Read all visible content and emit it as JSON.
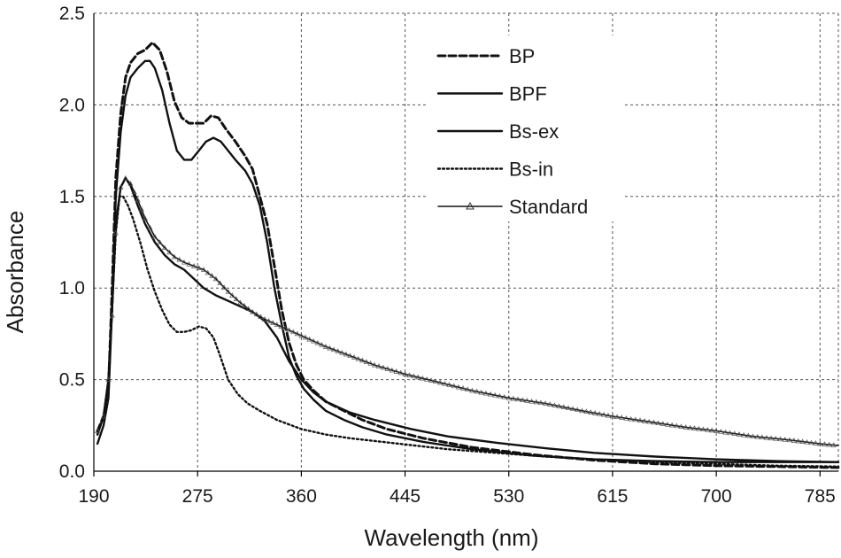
{
  "chart_data": {
    "type": "line",
    "title": "",
    "xlabel": "Wavelength (nm)",
    "ylabel": "Absorbance",
    "xlim": [
      190,
      800
    ],
    "ylim": [
      0,
      2.5
    ],
    "xticks": [
      190,
      275,
      360,
      445,
      530,
      615,
      700,
      785
    ],
    "yticks": [
      0.0,
      0.5,
      1.0,
      1.5,
      2.0,
      2.5
    ],
    "ytick_labels": [
      "0.0",
      "0.5",
      "1.0",
      "1.5",
      "2.0",
      "2.5"
    ],
    "grid": true,
    "legend_position": "top-right",
    "series": [
      {
        "name": "BP",
        "style": "dashed",
        "points": [
          [
            193,
            0.22
          ],
          [
            198,
            0.3
          ],
          [
            202,
            0.45
          ],
          [
            205,
            1.0
          ],
          [
            208,
            1.6
          ],
          [
            212,
            1.95
          ],
          [
            216,
            2.15
          ],
          [
            220,
            2.23
          ],
          [
            226,
            2.28
          ],
          [
            232,
            2.3
          ],
          [
            238,
            2.34
          ],
          [
            244,
            2.3
          ],
          [
            250,
            2.18
          ],
          [
            256,
            2.02
          ],
          [
            262,
            1.93
          ],
          [
            268,
            1.9
          ],
          [
            274,
            1.9
          ],
          [
            280,
            1.9
          ],
          [
            286,
            1.94
          ],
          [
            292,
            1.93
          ],
          [
            298,
            1.87
          ],
          [
            306,
            1.8
          ],
          [
            314,
            1.72
          ],
          [
            320,
            1.65
          ],
          [
            326,
            1.5
          ],
          [
            332,
            1.35
          ],
          [
            338,
            1.12
          ],
          [
            344,
            0.88
          ],
          [
            350,
            0.7
          ],
          [
            356,
            0.58
          ],
          [
            362,
            0.5
          ],
          [
            370,
            0.44
          ],
          [
            380,
            0.38
          ],
          [
            395,
            0.33
          ],
          [
            410,
            0.28
          ],
          [
            430,
            0.23
          ],
          [
            460,
            0.18
          ],
          [
            500,
            0.13
          ],
          [
            550,
            0.09
          ],
          [
            600,
            0.06
          ],
          [
            650,
            0.04
          ],
          [
            700,
            0.03
          ],
          [
            750,
            0.025
          ],
          [
            800,
            0.02
          ]
        ]
      },
      {
        "name": "BPF",
        "style": "solid",
        "points": [
          [
            193,
            0.15
          ],
          [
            198,
            0.25
          ],
          [
            202,
            0.4
          ],
          [
            205,
            0.9
          ],
          [
            208,
            1.5
          ],
          [
            212,
            1.85
          ],
          [
            216,
            2.05
          ],
          [
            220,
            2.15
          ],
          [
            226,
            2.2
          ],
          [
            232,
            2.24
          ],
          [
            236,
            2.24
          ],
          [
            240,
            2.2
          ],
          [
            246,
            2.08
          ],
          [
            252,
            1.9
          ],
          [
            258,
            1.75
          ],
          [
            264,
            1.7
          ],
          [
            270,
            1.7
          ],
          [
            276,
            1.75
          ],
          [
            282,
            1.8
          ],
          [
            288,
            1.82
          ],
          [
            294,
            1.8
          ],
          [
            300,
            1.75
          ],
          [
            306,
            1.7
          ],
          [
            314,
            1.64
          ],
          [
            320,
            1.57
          ],
          [
            326,
            1.45
          ],
          [
            332,
            1.25
          ],
          [
            338,
            1.0
          ],
          [
            344,
            0.8
          ],
          [
            350,
            0.62
          ],
          [
            356,
            0.52
          ],
          [
            362,
            0.45
          ],
          [
            370,
            0.39
          ],
          [
            380,
            0.33
          ],
          [
            395,
            0.28
          ],
          [
            410,
            0.24
          ],
          [
            430,
            0.2
          ],
          [
            460,
            0.16
          ],
          [
            500,
            0.12
          ],
          [
            550,
            0.085
          ],
          [
            600,
            0.065
          ],
          [
            650,
            0.055
          ],
          [
            700,
            0.05
          ],
          [
            750,
            0.05
          ],
          [
            800,
            0.05
          ]
        ]
      },
      {
        "name": "Bs-ex",
        "style": "solid",
        "points": [
          [
            193,
            0.2
          ],
          [
            198,
            0.3
          ],
          [
            202,
            0.5
          ],
          [
            205,
            0.9
          ],
          [
            208,
            1.35
          ],
          [
            212,
            1.55
          ],
          [
            216,
            1.6
          ],
          [
            220,
            1.56
          ],
          [
            226,
            1.45
          ],
          [
            232,
            1.35
          ],
          [
            240,
            1.25
          ],
          [
            248,
            1.18
          ],
          [
            256,
            1.13
          ],
          [
            264,
            1.1
          ],
          [
            272,
            1.05
          ],
          [
            280,
            1.0
          ],
          [
            290,
            0.96
          ],
          [
            300,
            0.93
          ],
          [
            310,
            0.9
          ],
          [
            320,
            0.87
          ],
          [
            330,
            0.82
          ],
          [
            340,
            0.73
          ],
          [
            350,
            0.6
          ],
          [
            360,
            0.5
          ],
          [
            370,
            0.43
          ],
          [
            380,
            0.38
          ],
          [
            400,
            0.32
          ],
          [
            420,
            0.28
          ],
          [
            450,
            0.23
          ],
          [
            480,
            0.19
          ],
          [
            520,
            0.155
          ],
          [
            560,
            0.125
          ],
          [
            600,
            0.1
          ],
          [
            650,
            0.08
          ],
          [
            700,
            0.065
          ],
          [
            750,
            0.055
          ],
          [
            800,
            0.05
          ]
        ]
      },
      {
        "name": "Bs-in",
        "style": "dotted",
        "points": [
          [
            193,
            0.2
          ],
          [
            198,
            0.3
          ],
          [
            202,
            0.5
          ],
          [
            205,
            0.9
          ],
          [
            208,
            1.3
          ],
          [
            211,
            1.5
          ],
          [
            214,
            1.5
          ],
          [
            218,
            1.45
          ],
          [
            222,
            1.38
          ],
          [
            228,
            1.25
          ],
          [
            234,
            1.1
          ],
          [
            240,
            0.98
          ],
          [
            246,
            0.88
          ],
          [
            252,
            0.8
          ],
          [
            258,
            0.76
          ],
          [
            264,
            0.76
          ],
          [
            270,
            0.77
          ],
          [
            276,
            0.79
          ],
          [
            282,
            0.78
          ],
          [
            288,
            0.73
          ],
          [
            294,
            0.62
          ],
          [
            300,
            0.5
          ],
          [
            308,
            0.42
          ],
          [
            316,
            0.37
          ],
          [
            326,
            0.33
          ],
          [
            340,
            0.28
          ],
          [
            360,
            0.23
          ],
          [
            380,
            0.2
          ],
          [
            400,
            0.18
          ],
          [
            440,
            0.15
          ],
          [
            480,
            0.12
          ],
          [
            520,
            0.1
          ],
          [
            560,
            0.08
          ],
          [
            600,
            0.065
          ],
          [
            650,
            0.05
          ],
          [
            700,
            0.04
          ],
          [
            750,
            0.03
          ],
          [
            800,
            0.025
          ]
        ]
      },
      {
        "name": "Standard",
        "style": "solid-triangle",
        "points": [
          [
            193,
            0.22
          ],
          [
            198,
            0.3
          ],
          [
            202,
            0.5
          ],
          [
            205,
            0.85
          ],
          [
            208,
            1.3
          ],
          [
            212,
            1.55
          ],
          [
            216,
            1.6
          ],
          [
            220,
            1.57
          ],
          [
            226,
            1.48
          ],
          [
            232,
            1.38
          ],
          [
            240,
            1.28
          ],
          [
            248,
            1.22
          ],
          [
            256,
            1.17
          ],
          [
            264,
            1.14
          ],
          [
            272,
            1.12
          ],
          [
            280,
            1.1
          ],
          [
            290,
            1.05
          ],
          [
            300,
            0.98
          ],
          [
            310,
            0.92
          ],
          [
            320,
            0.87
          ],
          [
            330,
            0.83
          ],
          [
            340,
            0.8
          ],
          [
            350,
            0.77
          ],
          [
            360,
            0.74
          ],
          [
            380,
            0.68
          ],
          [
            400,
            0.63
          ],
          [
            420,
            0.58
          ],
          [
            445,
            0.53
          ],
          [
            470,
            0.49
          ],
          [
            500,
            0.44
          ],
          [
            530,
            0.4
          ],
          [
            560,
            0.37
          ],
          [
            590,
            0.33
          ],
          [
            615,
            0.3
          ],
          [
            645,
            0.27
          ],
          [
            675,
            0.24
          ],
          [
            700,
            0.22
          ],
          [
            730,
            0.19
          ],
          [
            760,
            0.17
          ],
          [
            785,
            0.15
          ],
          [
            800,
            0.14
          ]
        ]
      }
    ]
  }
}
